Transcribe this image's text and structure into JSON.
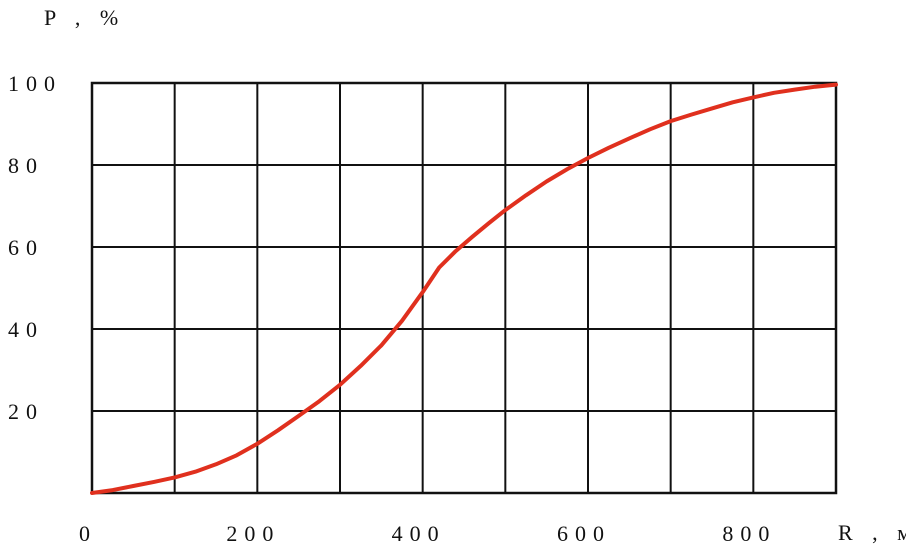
{
  "chart_data": {
    "type": "line",
    "ylabel": "P , %",
    "xlabel": "R , м",
    "xlim": [
      0,
      900
    ],
    "ylim": [
      0,
      100
    ],
    "grid": true,
    "x_ticks": [
      {
        "value": 0,
        "label": "0"
      },
      {
        "value": 200,
        "label": "200"
      },
      {
        "value": 400,
        "label": "400"
      },
      {
        "value": 600,
        "label": "600"
      },
      {
        "value": 800,
        "label": "800"
      }
    ],
    "y_ticks": [
      {
        "value": 20,
        "label": "20"
      },
      {
        "value": 40,
        "label": "40"
      },
      {
        "value": 60,
        "label": "60"
      },
      {
        "value": 80,
        "label": "80"
      },
      {
        "value": 100,
        "label": "100"
      }
    ],
    "series": [
      {
        "color": "#e0301e",
        "x": [
          0,
          25,
          50,
          75,
          100,
          125,
          150,
          175,
          200,
          225,
          250,
          275,
          300,
          325,
          350,
          375,
          400,
          420,
          440,
          460,
          480,
          500,
          525,
          550,
          575,
          600,
          625,
          650,
          675,
          700,
          725,
          750,
          775,
          800,
          825,
          850,
          875,
          900
        ],
        "y": [
          0,
          0.7,
          1.7,
          2.7,
          3.8,
          5.2,
          7.0,
          9.2,
          12.0,
          15.3,
          18.8,
          22.4,
          26.4,
          31.0,
          36.0,
          42.0,
          49.0,
          55.0,
          59.0,
          62.5,
          65.8,
          69.0,
          72.6,
          76.0,
          79.0,
          81.7,
          84.2,
          86.5,
          88.7,
          90.7,
          92.3,
          93.8,
          95.3,
          96.5,
          97.6,
          98.4,
          99.1,
          99.6
        ]
      }
    ]
  }
}
